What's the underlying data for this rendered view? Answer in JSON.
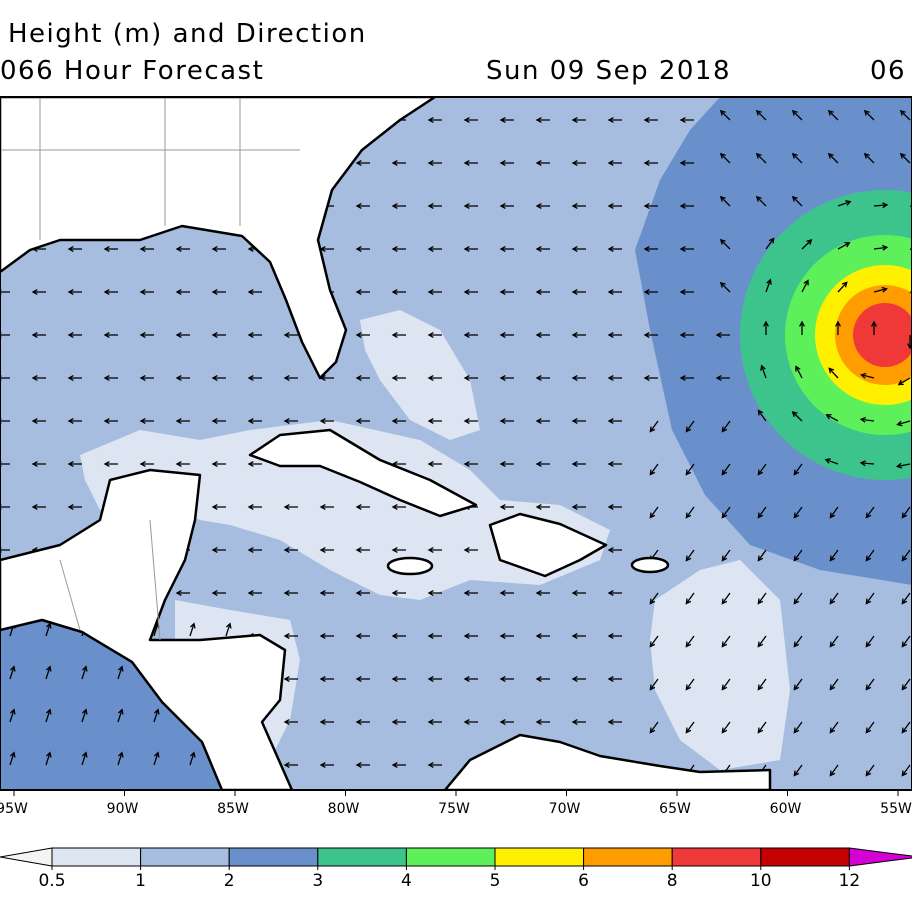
{
  "header": {
    "title": "Height (m) and Direction",
    "forecast": "066 Hour Forecast",
    "date": "Sun 09 Sep 2018",
    "time": "06"
  },
  "map": {
    "lon_labels": [
      "95W",
      "90W",
      "85W",
      "80W",
      "75W",
      "70W",
      "65W",
      "60W",
      "55W"
    ]
  },
  "colorbar": {
    "ticks": [
      0.5,
      1,
      2,
      3,
      4,
      5,
      6,
      8,
      10,
      12
    ],
    "colors": [
      "#dde5f2",
      "#a7bde0",
      "#6a90cc",
      "#3cc48c",
      "#5ef05a",
      "#fff000",
      "#ff9d00",
      "#ef3838",
      "#c40000"
    ],
    "under_color": "#f4f4f4",
    "over_color": "#d400d4"
  }
}
